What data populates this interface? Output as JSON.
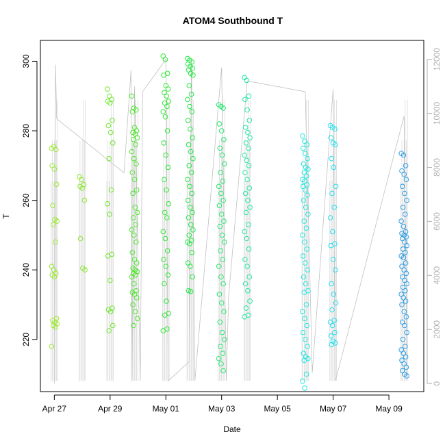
{
  "chart_data": {
    "type": "scatter",
    "title": "ATOM4 Southbound T",
    "xlabel": "Date",
    "ylabel": "T",
    "x_ticks": [
      "Apr 27",
      "Apr 29",
      "May 01",
      "May 03",
      "May 05",
      "May 07",
      "May 09"
    ],
    "y_ticks": [
      "220",
      "240",
      "260",
      "280",
      "300"
    ],
    "y2_ticks": [
      "0",
      "2000",
      "4000",
      "6000",
      "8000",
      "10000",
      "12000"
    ],
    "xlim": [
      "2016-04-26T12:00",
      "2016-05-10T06:00"
    ],
    "ylim": [
      205,
      306
    ],
    "y2lim": [
      -300,
      12700
    ],
    "series_color_note": "points colored by time, green to blue",
    "point_series": [
      {
        "x": "2016-04-27T00:00",
        "color": "#9aea2e",
        "y": [
          275,
          275.5,
          274.6,
          270,
          269,
          264.6,
          258.5,
          254.5,
          254,
          253,
          248,
          241,
          240,
          239,
          238.5,
          238,
          226,
          225.5,
          225,
          224.5,
          224,
          223.5,
          218
        ]
      },
      {
        "x": "2016-04-28T00:00",
        "color": "#8ae82a",
        "y": [
          266.8,
          266,
          264.5,
          264,
          263.5,
          260,
          249,
          240.5,
          240
        ]
      },
      {
        "x": "2016-04-29T00:00",
        "color": "#6ee82a",
        "y": [
          292,
          290,
          289,
          288.5,
          288,
          283,
          281.5,
          279.5,
          276.5,
          272,
          263,
          259,
          256,
          244.5,
          244,
          237,
          229,
          228.5,
          228,
          224,
          222.5
        ]
      },
      {
        "x": "2016-04-29T21:00",
        "color": "#4ce82a",
        "y": [
          290,
          286.5,
          286,
          285.5,
          281,
          280,
          279.5,
          279,
          278,
          277.5,
          276,
          274,
          272,
          270.5,
          268,
          266,
          263,
          262,
          258,
          256.5,
          255,
          253,
          251.5,
          250,
          248,
          245,
          243,
          242,
          240.5,
          240,
          239.5,
          239,
          238.5,
          238,
          236,
          234,
          233.5,
          233,
          232,
          230,
          228,
          226,
          224
        ]
      },
      {
        "x": "2016-05-01T00:00",
        "color": "#2ce832",
        "y": [
          301.5,
          300.5,
          296.5,
          296,
          293,
          292,
          291,
          290,
          288.5,
          288,
          287,
          285.5,
          284,
          280,
          276.5,
          273,
          269.5,
          266,
          263,
          259,
          256.5,
          255,
          251,
          249,
          245.5,
          243,
          241,
          238.5,
          236,
          231,
          227.5,
          227,
          223,
          222.5
        ]
      },
      {
        "x": "2016-05-01T21:00",
        "color": "#1ee840",
        "y": [
          300.8,
          300.3,
          299.8,
          299.2,
          298.5,
          298,
          297.5,
          296.5,
          296,
          293,
          290.5,
          289,
          287,
          285.5,
          283,
          280.5,
          278,
          276,
          274,
          272,
          270,
          268,
          266,
          264,
          262,
          260,
          258,
          256.5,
          255,
          253,
          251.5,
          250,
          248.5,
          248,
          247.5,
          245,
          242,
          241,
          238,
          234,
          233.8
        ]
      },
      {
        "x": "2016-05-03T00:00",
        "color": "#1ee86a",
        "y": [
          287.5,
          287,
          286.5,
          282,
          280,
          277.5,
          275,
          273,
          270.5,
          268,
          265.5,
          264,
          262,
          260,
          258.5,
          256,
          254,
          252.5,
          250,
          248,
          245.5,
          243,
          241,
          238,
          236,
          233,
          230.5,
          228,
          225,
          222,
          220,
          218,
          216,
          214.5,
          213,
          211
        ]
      },
      {
        "x": "2016-05-03T22:00",
        "color": "#1ee8a0",
        "y": [
          295.3,
          294.5,
          290,
          289,
          286,
          283,
          281,
          279.5,
          278,
          276.5,
          275,
          273,
          271.5,
          270,
          268,
          266,
          263.5,
          262,
          260,
          258,
          256.5,
          253,
          251,
          249,
          246,
          243,
          241,
          238,
          236,
          234,
          231,
          229,
          227,
          226.5
        ]
      },
      {
        "x": "2016-05-06T00:00",
        "color": "#1ee8e0",
        "y": [
          278.5,
          277,
          276,
          275,
          273.5,
          272,
          270.5,
          269.5,
          269,
          268,
          267,
          266,
          265.5,
          264.5,
          264,
          263,
          261.5,
          260,
          258,
          256,
          254,
          252,
          250,
          248,
          246,
          244,
          242,
          240,
          238,
          236,
          234,
          233.5,
          230,
          228,
          226,
          224,
          222,
          220,
          218,
          216,
          215,
          214.5,
          214,
          210,
          208,
          206
        ]
      },
      {
        "x": "2016-05-07T00:00",
        "color": "#1ee0f0",
        "y": [
          281.5,
          281,
          280.5,
          278,
          276.5,
          276,
          272,
          269.5,
          264,
          262,
          258,
          255,
          251,
          247.5,
          247,
          243,
          240,
          236,
          233,
          230.5,
          228.5,
          225.5,
          225,
          224,
          222,
          221,
          219.5,
          219,
          218.5
        ]
      },
      {
        "x": "2016-05-09T13:00",
        "color": "#2a9ee8",
        "y": [
          273.5,
          273,
          270,
          268.5,
          267.5,
          266,
          264,
          262,
          260,
          258,
          256,
          254,
          252.5,
          251,
          250.5,
          250,
          249.5,
          249,
          248,
          247,
          246,
          245,
          244,
          243.5,
          242,
          241,
          240,
          239,
          238,
          237,
          236,
          235,
          234,
          233,
          232,
          231,
          230,
          228,
          226.5,
          225,
          224,
          222,
          220,
          218,
          217,
          216,
          215,
          214,
          213,
          212,
          211,
          210,
          209.5
        ]
      }
    ],
    "altitude_trace": {
      "axis": "right",
      "color": "#c0c0c0",
      "note": "altitude profile on right axis",
      "points": [
        [
          "2016-04-27T00:00",
          0
        ],
        [
          "2016-04-27T01:00",
          11800
        ],
        [
          "2016-04-27T02:00",
          9800
        ],
        [
          "2016-04-29T12:00",
          7800
        ],
        [
          "2016-04-29T18:00",
          11600
        ],
        [
          "2016-04-29T19:00",
          100
        ],
        [
          "2016-04-29T21:00",
          11000
        ],
        [
          "2016-04-30T02:00",
          100
        ],
        [
          "2016-04-30T04:00",
          10800
        ],
        [
          "2016-05-01T00:00",
          12000
        ],
        [
          "2016-05-01T02:00",
          100
        ],
        [
          "2016-05-01T20:00",
          800
        ],
        [
          "2016-05-01T22:00",
          12000
        ],
        [
          "2016-05-02T01:00",
          100
        ],
        [
          "2016-05-03T00:00",
          11700
        ],
        [
          "2016-05-03T04:00",
          100
        ],
        [
          "2016-05-03T06:00",
          3200
        ],
        [
          "2016-05-03T22:00",
          11200
        ],
        [
          "2016-05-06T00:00",
          10800
        ],
        [
          "2016-05-06T06:00",
          400
        ],
        [
          "2016-05-07T00:00",
          10900
        ],
        [
          "2016-05-07T02:00",
          100
        ],
        [
          "2016-05-09T13:00",
          9900
        ],
        [
          "2016-05-09T16:00",
          200
        ]
      ]
    },
    "grid": false,
    "legend": "none"
  }
}
